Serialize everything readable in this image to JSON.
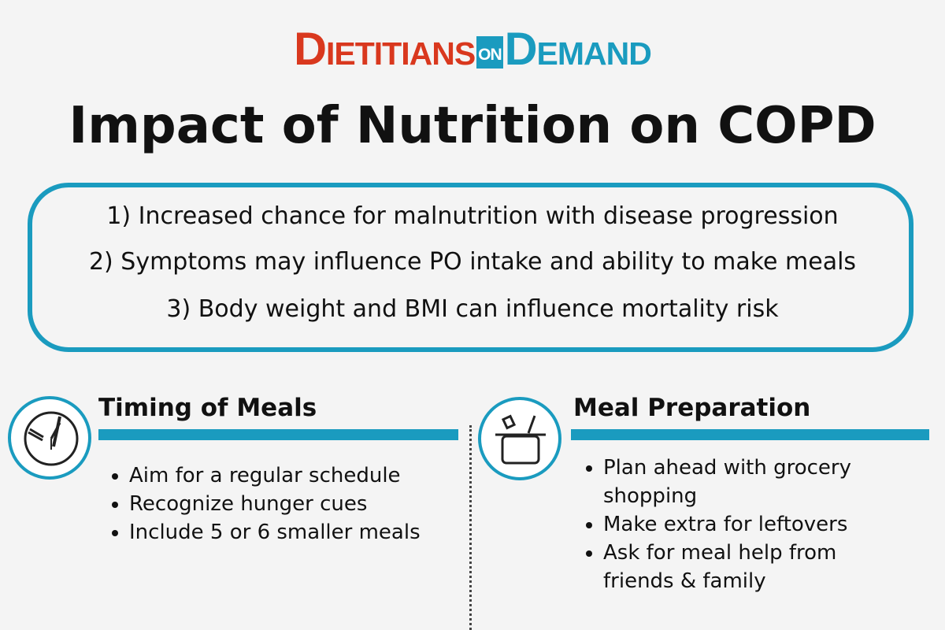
{
  "logo": [
    "Dietitians",
    "on",
    "Demand"
  ],
  "title": "Impact of Nutrition on COPD",
  "key_points": [
    "1) Increased chance for malnutrition with disease progression",
    "2) Symptoms may influence PO intake and ability to make meals",
    "3) Body weight and BMI can influence mortality risk"
  ],
  "sections": [
    {
      "heading": "Timing of Meals",
      "bullets": [
        "Aim for a regular schedule",
        "Recognize hunger cues",
        "Include 5 or 6 smaller meals"
      ]
    },
    {
      "heading": "Meal Preparation",
      "bullets": [
        "Plan ahead with grocery shopping",
        "Make extra for leftovers",
        "Ask for meal help from friends & family"
      ]
    }
  ]
}
